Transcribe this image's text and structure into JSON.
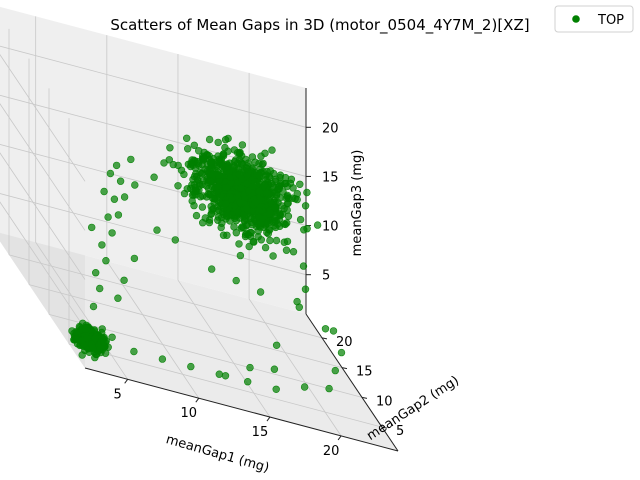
{
  "chart_data": {
    "type": "scatter",
    "projection": "3d",
    "title": "Scatters of Mean Gaps in 3D (motor_0504_4Y7M_2)[XZ]",
    "xlabel": "meanGap1 (mg)",
    "ylabel": "meanGap2 (mg)",
    "zlabel": "meanGap3 (mg)",
    "xlim": [
      2,
      24
    ],
    "ylim": [
      1,
      24
    ],
    "zlim": [
      1,
      24
    ],
    "xticks": [
      "5",
      "10",
      "15",
      "20"
    ],
    "yticks": [
      "5",
      "10",
      "15",
      "20"
    ],
    "zticks": [
      "5",
      "10",
      "15",
      "20"
    ],
    "grid": true,
    "legend": {
      "position": "top-right",
      "entries": [
        "TOP"
      ]
    },
    "series": [
      {
        "name": "TOP",
        "color": "#008000",
        "clusters": [
          {
            "center": [
              18,
              19,
              14
            ],
            "spread": [
              1.6,
              1.6,
              1.6
            ],
            "count": 950
          },
          {
            "center": [
              3,
              3,
              3
            ],
            "spread": [
              0.5,
              0.5,
              0.5
            ],
            "count": 300
          }
        ],
        "points": [
          [
            4,
            6,
            5
          ],
          [
            5,
            8,
            6
          ],
          [
            5,
            9,
            7
          ],
          [
            6,
            10,
            8
          ],
          [
            6,
            11,
            9
          ],
          [
            7,
            12,
            10
          ],
          [
            7,
            13,
            11
          ],
          [
            8,
            14,
            11
          ],
          [
            8,
            15,
            12
          ],
          [
            9,
            16,
            12
          ],
          [
            9,
            17,
            13
          ],
          [
            10,
            17,
            13
          ],
          [
            6,
            7,
            6
          ],
          [
            7,
            9,
            7
          ],
          [
            8,
            10,
            9
          ],
          [
            5,
            10,
            11
          ],
          [
            7,
            14,
            13
          ],
          [
            8,
            16,
            14
          ],
          [
            9,
            18,
            14
          ],
          [
            10,
            18,
            15
          ],
          [
            6,
            3,
            3
          ],
          [
            8,
            3,
            3
          ],
          [
            10,
            3,
            3
          ],
          [
            12,
            3,
            3
          ],
          [
            14,
            3,
            3
          ],
          [
            16,
            3,
            3
          ],
          [
            18,
            3,
            4
          ],
          [
            20,
            4,
            4
          ],
          [
            21,
            6,
            5
          ],
          [
            22,
            8,
            6
          ],
          [
            22,
            10,
            7
          ],
          [
            20,
            12,
            8
          ],
          [
            22,
            12,
            6
          ],
          [
            18,
            10,
            4
          ],
          [
            13,
            5,
            2
          ],
          [
            15,
            6,
            3
          ],
          [
            17,
            7,
            3
          ],
          [
            21,
            15,
            6
          ],
          [
            22,
            17,
            7
          ],
          [
            20,
            18,
            9
          ],
          [
            18,
            14,
            7
          ],
          [
            16,
            13,
            8
          ],
          [
            14,
            12,
            9
          ],
          [
            12,
            14,
            10
          ],
          [
            11,
            15,
            10
          ],
          [
            22,
            20,
            9
          ],
          [
            23,
            21,
            11
          ],
          [
            17,
            21,
            10
          ],
          [
            15,
            20,
            11
          ],
          [
            19,
            23,
            12
          ]
        ]
      }
    ]
  }
}
